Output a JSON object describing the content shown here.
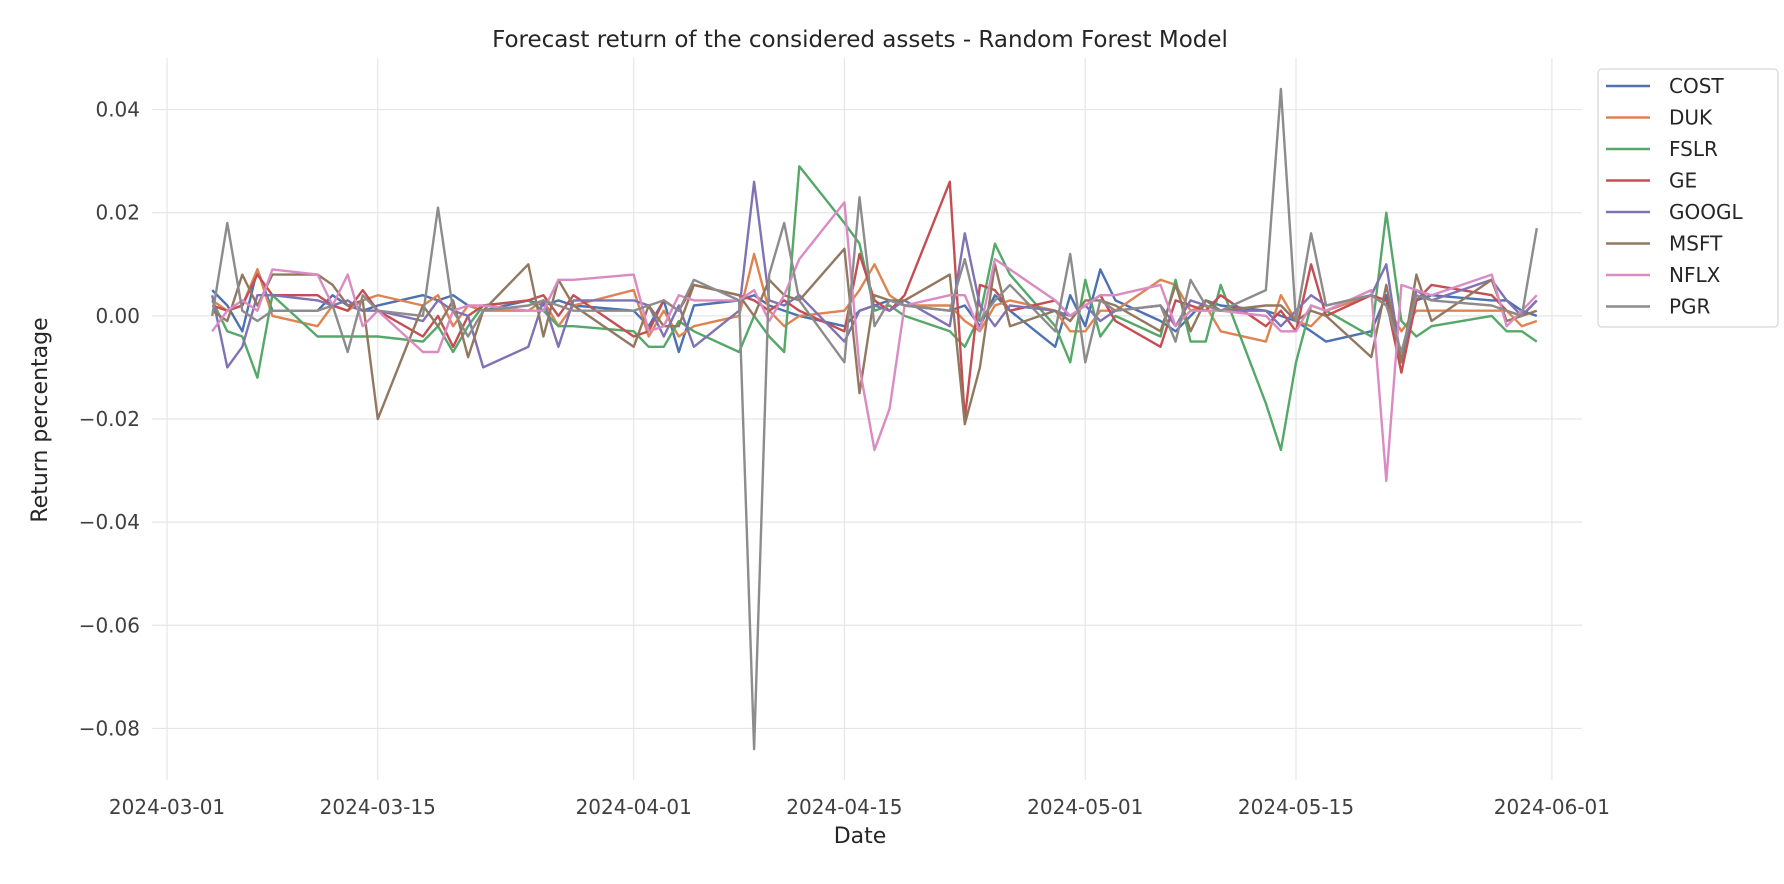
{
  "chart_data": {
    "type": "line",
    "title": "Forecast return of the considered assets - Random Forest Model",
    "xlabel": "Date",
    "ylabel": "Return percentage",
    "xlim": [
      "2024-02-29",
      "2024-06-03"
    ],
    "ylim": [
      -0.09,
      0.05
    ],
    "grid": true,
    "legend_position": "outside-top-right",
    "x_ticks": [
      "2024-03-01",
      "2024-03-15",
      "2024-04-01",
      "2024-04-15",
      "2024-05-01",
      "2024-05-15",
      "2024-06-01"
    ],
    "y_ticks": [
      0.04,
      0.02,
      0.0,
      -0.02,
      -0.04,
      -0.06,
      -0.08
    ],
    "y_tick_labels": [
      "0.04",
      "0.02",
      "0.00",
      "−0.02",
      "−0.04",
      "−0.06",
      "−0.08"
    ],
    "x": [
      "2024-03-04",
      "2024-03-05",
      "2024-03-06",
      "2024-03-07",
      "2024-03-08",
      "2024-03-11",
      "2024-03-12",
      "2024-03-13",
      "2024-03-14",
      "2024-03-15",
      "2024-03-18",
      "2024-03-19",
      "2024-03-20",
      "2024-03-21",
      "2024-03-22",
      "2024-03-25",
      "2024-03-26",
      "2024-03-27",
      "2024-03-28",
      "2024-04-01",
      "2024-04-02",
      "2024-04-03",
      "2024-04-04",
      "2024-04-05",
      "2024-04-08",
      "2024-04-09",
      "2024-04-10",
      "2024-04-11",
      "2024-04-12",
      "2024-04-15",
      "2024-04-16",
      "2024-04-17",
      "2024-04-18",
      "2024-04-19",
      "2024-04-22",
      "2024-04-23",
      "2024-04-24",
      "2024-04-25",
      "2024-04-26",
      "2024-04-29",
      "2024-04-30",
      "2024-05-01",
      "2024-05-02",
      "2024-05-03",
      "2024-05-06",
      "2024-05-07",
      "2024-05-08",
      "2024-05-09",
      "2024-05-10",
      "2024-05-13",
      "2024-05-14",
      "2024-05-15",
      "2024-05-16",
      "2024-05-17",
      "2024-05-20",
      "2024-05-21",
      "2024-05-22",
      "2024-05-23",
      "2024-05-24",
      "2024-05-28",
      "2024-05-29",
      "2024-05-30",
      "2024-05-31"
    ],
    "series": [
      {
        "name": "COST",
        "color": "#4c72b0",
        "values": [
          0.005,
          0.002,
          -0.003,
          0.009,
          0.001,
          0.001,
          0.004,
          0.002,
          0.001,
          0.002,
          0.004,
          0.003,
          0.004,
          0.002,
          0.001,
          0.003,
          0.002,
          0.003,
          0.002,
          0.001,
          -0.002,
          0.003,
          -0.007,
          0.002,
          0.003,
          0.004,
          0.002,
          0.001,
          0.0,
          -0.002,
          0.001,
          0.002,
          0.003,
          0.002,
          0.001,
          0.002,
          -0.002,
          0.004,
          0.001,
          -0.006,
          0.004,
          -0.002,
          0.009,
          0.003,
          -0.001,
          -0.003,
          0.0,
          0.003,
          0.002,
          0.001,
          0.0,
          -0.001,
          -0.003,
          -0.005,
          -0.003,
          0.004,
          -0.009,
          0.003,
          0.004,
          0.003,
          0.003,
          0.001,
          0.0
        ]
      },
      {
        "name": "DUK",
        "color": "#dd8452",
        "values": [
          0.003,
          0.001,
          0.002,
          0.009,
          0.0,
          -0.002,
          0.002,
          0.001,
          0.003,
          0.004,
          0.002,
          0.004,
          -0.002,
          0.002,
          0.001,
          0.001,
          0.003,
          -0.002,
          0.002,
          0.005,
          -0.004,
          0.001,
          -0.004,
          -0.002,
          0.0,
          0.012,
          0.001,
          -0.002,
          0.0,
          0.001,
          0.005,
          0.01,
          0.004,
          0.002,
          0.002,
          -0.001,
          -0.003,
          0.002,
          0.003,
          0.001,
          -0.003,
          -0.003,
          0.001,
          0.001,
          0.007,
          0.006,
          0.001,
          0.002,
          -0.003,
          -0.005,
          0.004,
          -0.001,
          -0.002,
          0.001,
          0.004,
          0.002,
          -0.003,
          0.001,
          0.001,
          0.001,
          0.001,
          -0.002,
          -0.001
        ]
      },
      {
        "name": "FSLR",
        "color": "#55a868",
        "values": [
          0.003,
          -0.003,
          -0.004,
          -0.012,
          0.004,
          -0.004,
          -0.004,
          -0.004,
          -0.004,
          -0.004,
          -0.005,
          -0.002,
          -0.007,
          -0.002,
          0.002,
          0.003,
          0.001,
          -0.002,
          -0.002,
          -0.003,
          -0.006,
          -0.006,
          -0.001,
          -0.003,
          -0.007,
          0.0,
          -0.004,
          -0.007,
          0.029,
          0.018,
          0.014,
          0.001,
          0.002,
          0.0,
          -0.003,
          -0.006,
          0.0,
          0.014,
          0.008,
          -0.002,
          -0.009,
          0.007,
          -0.004,
          0.0,
          -0.004,
          0.007,
          -0.005,
          -0.005,
          0.006,
          -0.017,
          -0.026,
          -0.009,
          0.002,
          0.001,
          -0.004,
          0.02,
          -0.001,
          -0.004,
          -0.002,
          0.0,
          -0.003,
          -0.003,
          -0.005
        ]
      },
      {
        "name": "GE",
        "color": "#c44e52",
        "values": [
          0.002,
          0.001,
          0.002,
          0.008,
          0.004,
          0.004,
          0.002,
          0.001,
          0.005,
          0.001,
          -0.004,
          0.0,
          -0.006,
          0.0,
          0.002,
          0.003,
          0.004,
          0.0,
          0.004,
          -0.004,
          -0.003,
          0.003,
          0.001,
          0.006,
          0.004,
          0.003,
          0.001,
          0.003,
          0.001,
          -0.003,
          0.012,
          0.003,
          0.001,
          0.004,
          0.026,
          -0.02,
          0.006,
          0.005,
          0.001,
          0.003,
          0.0,
          0.002,
          0.004,
          -0.001,
          -0.006,
          0.003,
          0.002,
          0.001,
          0.004,
          -0.002,
          0.001,
          -0.003,
          0.01,
          0.0,
          0.004,
          0.003,
          -0.011,
          0.003,
          0.006,
          0.004,
          0.001,
          0.0,
          0.003
        ]
      },
      {
        "name": "GOOGL",
        "color": "#8172b3",
        "values": [
          0.004,
          -0.01,
          -0.006,
          0.004,
          0.004,
          0.003,
          0.002,
          0.003,
          0.001,
          0.001,
          -0.001,
          0.003,
          0.001,
          0.0,
          -0.01,
          -0.006,
          0.003,
          -0.006,
          0.003,
          0.003,
          0.002,
          -0.004,
          0.002,
          -0.006,
          0.001,
          0.026,
          0.003,
          0.002,
          0.004,
          -0.005,
          0.001,
          0.002,
          0.001,
          0.003,
          -0.002,
          0.016,
          0.002,
          -0.002,
          0.002,
          0.001,
          0.0,
          0.002,
          -0.001,
          0.001,
          0.002,
          -0.002,
          0.003,
          0.002,
          0.001,
          0.001,
          -0.002,
          0.001,
          0.004,
          0.002,
          0.004,
          0.01,
          -0.009,
          0.005,
          0.003,
          0.007,
          0.003,
          0.0,
          0.003
        ]
      },
      {
        "name": "MSFT",
        "color": "#937860",
        "values": [
          0.001,
          -0.001,
          0.008,
          0.002,
          0.008,
          0.008,
          0.006,
          0.002,
          0.003,
          -0.02,
          0.002,
          -0.002,
          0.003,
          -0.008,
          0.001,
          0.01,
          -0.004,
          0.007,
          0.002,
          -0.006,
          0.002,
          -0.002,
          -0.002,
          0.006,
          0.004,
          0.0,
          0.007,
          0.004,
          0.003,
          0.013,
          -0.015,
          0.004,
          0.003,
          0.003,
          0.008,
          -0.021,
          -0.01,
          0.01,
          -0.002,
          0.001,
          -0.001,
          0.003,
          0.003,
          0.002,
          -0.003,
          0.006,
          -0.003,
          0.003,
          0.001,
          0.002,
          0.002,
          -0.001,
          0.001,
          0.0,
          -0.008,
          0.006,
          -0.009,
          0.008,
          -0.001,
          0.007,
          -0.001,
          0.0,
          0.001
        ]
      },
      {
        "name": "NFLX",
        "color": "#da8bc3",
        "values": [
          -0.003,
          0.001,
          0.003,
          0.001,
          0.009,
          0.008,
          0.002,
          0.008,
          -0.002,
          0.001,
          -0.007,
          -0.007,
          0.001,
          0.002,
          0.002,
          0.001,
          0.001,
          0.007,
          0.007,
          0.008,
          -0.003,
          -0.002,
          0.004,
          0.003,
          0.003,
          0.005,
          -0.001,
          0.004,
          0.011,
          0.022,
          -0.01,
          -0.026,
          -0.018,
          0.002,
          0.004,
          0.004,
          -0.003,
          0.011,
          0.009,
          0.003,
          0.0,
          0.002,
          0.004,
          0.004,
          0.006,
          -0.002,
          0.001,
          0.001,
          0.001,
          0.0,
          -0.003,
          -0.003,
          0.002,
          0.001,
          0.005,
          -0.032,
          0.006,
          0.005,
          0.004,
          0.008,
          -0.002,
          0.001,
          0.004
        ]
      },
      {
        "name": "PGR",
        "color": "#8c8c8c",
        "values": [
          0.0,
          0.018,
          0.001,
          -0.001,
          0.001,
          0.001,
          0.002,
          -0.007,
          0.004,
          0.001,
          0.0,
          0.021,
          0.001,
          -0.004,
          0.001,
          0.002,
          0.003,
          0.002,
          0.001,
          0.001,
          0.002,
          0.003,
          0.001,
          0.007,
          0.003,
          -0.084,
          0.008,
          0.018,
          0.003,
          -0.009,
          0.023,
          -0.002,
          0.003,
          0.002,
          0.001,
          0.011,
          -0.001,
          0.003,
          0.006,
          -0.003,
          0.012,
          -0.009,
          0.003,
          0.001,
          0.002,
          -0.005,
          0.007,
          0.002,
          0.001,
          0.005,
          0.044,
          -0.001,
          0.016,
          0.002,
          0.004,
          0.002,
          -0.007,
          0.004,
          0.003,
          0.002,
          0.001,
          0.0,
          0.017
        ]
      }
    ]
  }
}
